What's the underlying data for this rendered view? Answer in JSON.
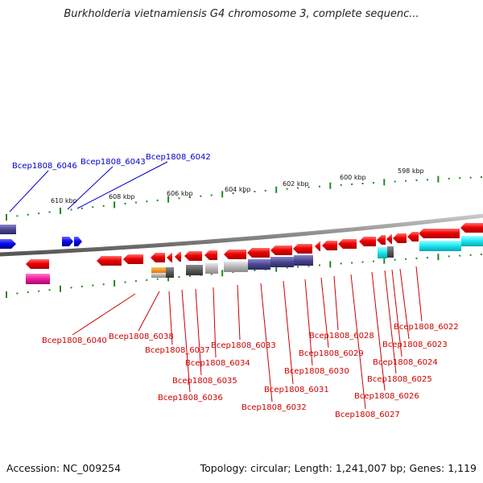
{
  "title": "Burkholderia vietnamiensis G4 chromosome 3, complete sequenc...",
  "accession": "Accession: NC_009254",
  "topology": "Topology: circular; Length: 1,241,007 bp; Genes: 1,119",
  "colors": {
    "forward_gene": "#1414e6",
    "reverse_gene": "#ee0000",
    "genome_line": "#808080",
    "ticks": "#1f8a1f",
    "label_blue": "#0000cc",
    "label_red": "#cc0000"
  },
  "scale_labels": [
    "610 kbp",
    "608 kbp",
    "606 kbp",
    "604 kbp",
    "602 kbp",
    "600 kbp",
    "598 kbp"
  ],
  "upper_gene_labels": [
    "Bcep1808_6046",
    "Bcep1808_6043",
    "Bcep1808_6042"
  ],
  "lower_gene_labels": [
    "Bcep1808_6040",
    "Bcep1808_6038",
    "Bcep1808_6037",
    "Bcep1808_6036",
    "Bcep1808_6035",
    "Bcep1808_6034",
    "Bcep1808_6033",
    "Bcep1808_6032",
    "Bcep1808_6031",
    "Bcep1808_6030",
    "Bcep1808_6029",
    "Bcep1808_6028",
    "Bcep1808_6027",
    "Bcep1808_6026",
    "Bcep1808_6025",
    "Bcep1808_6024",
    "Bcep1808_6023",
    "Bcep1808_6022"
  ]
}
